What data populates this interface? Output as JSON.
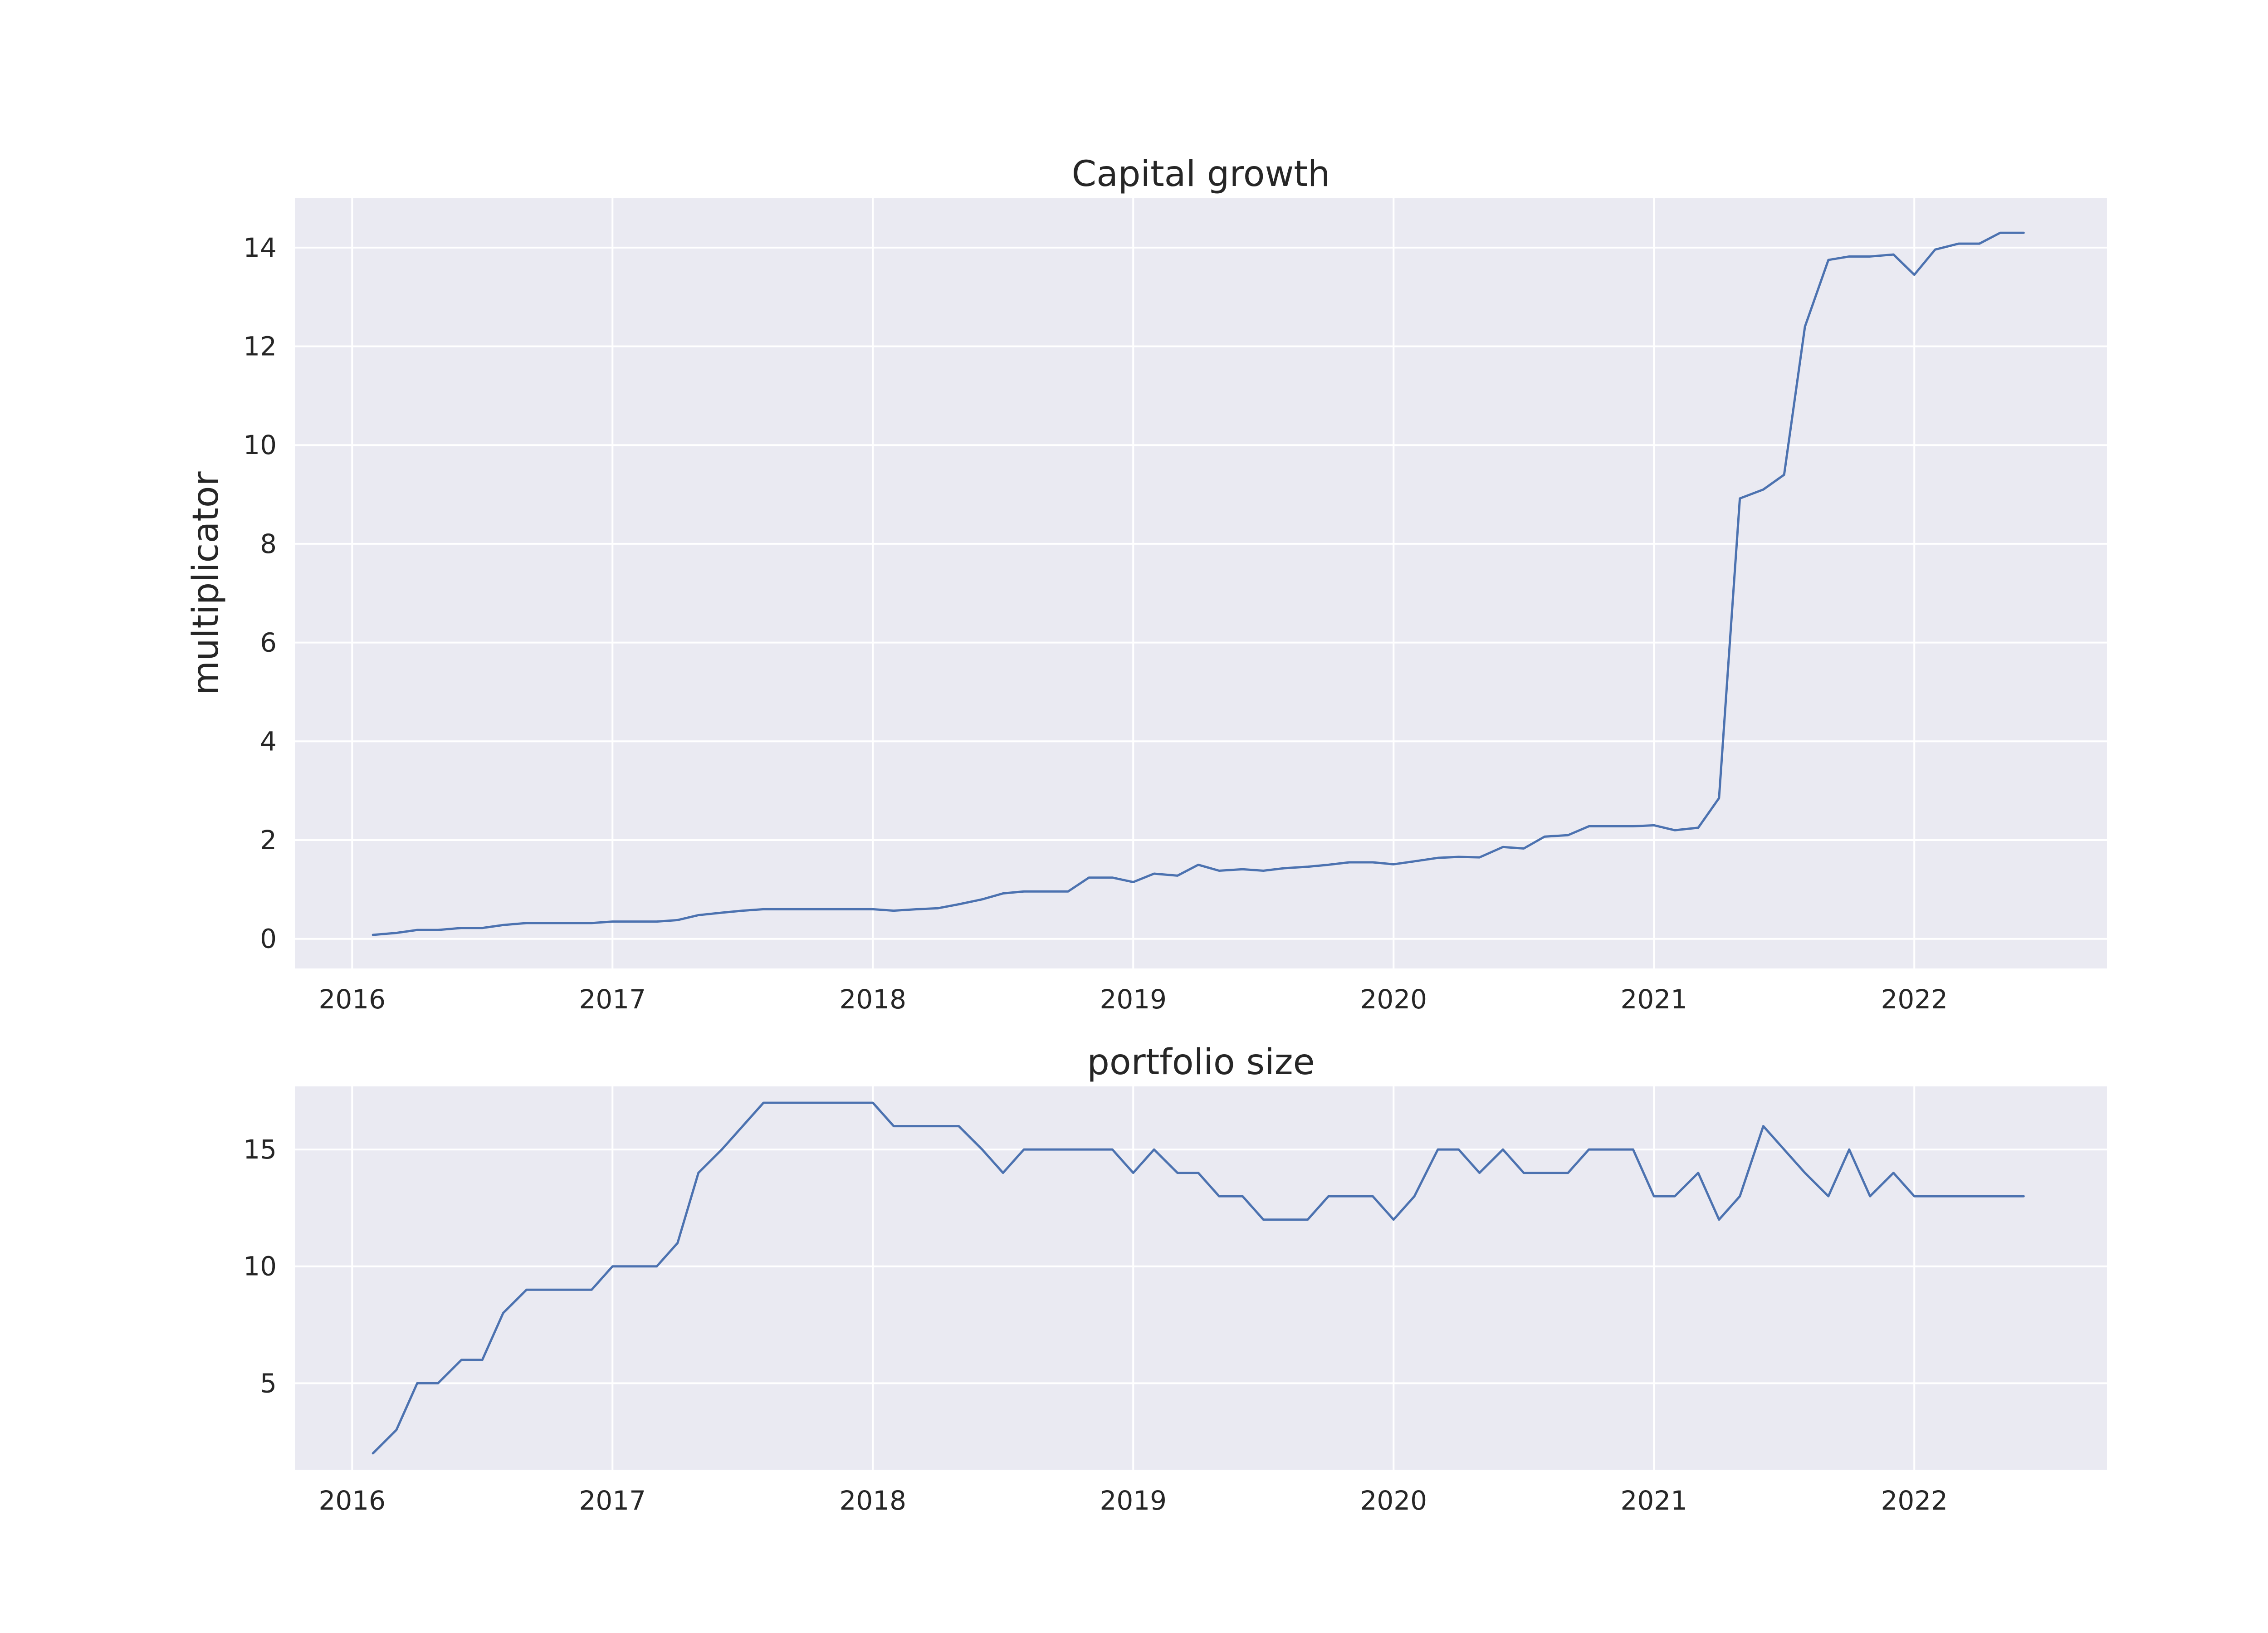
{
  "colors": {
    "line": "#4c72b0",
    "plot_bg": "#eaeaf2",
    "grid": "#ffffff",
    "text": "#262626"
  },
  "chart_data": [
    {
      "type": "line",
      "title": "Capital growth",
      "xlabel": "",
      "ylabel": "multiplicator",
      "grid": true,
      "xlim": [
        2015.78,
        2022.74
      ],
      "ylim": [
        -0.6,
        15.0
      ],
      "xticks": [
        2016,
        2017,
        2018,
        2019,
        2020,
        2021,
        2022
      ],
      "xtick_labels": [
        "2016",
        "2017",
        "2018",
        "2019",
        "2020",
        "2021",
        "2022"
      ],
      "yticks": [
        0,
        2,
        4,
        6,
        8,
        10,
        12,
        14
      ],
      "ytick_labels": [
        "0",
        "2",
        "4",
        "6",
        "8",
        "10",
        "12",
        "14"
      ],
      "series": [
        {
          "x": [
            2016.08,
            2016.17,
            2016.25,
            2016.33,
            2016.42,
            2016.5,
            2016.58,
            2016.67,
            2016.75,
            2016.83,
            2016.92,
            2017.0,
            2017.08,
            2017.17,
            2017.25,
            2017.33,
            2017.42,
            2017.5,
            2017.58,
            2017.67,
            2017.75,
            2017.83,
            2017.92,
            2018.0,
            2018.08,
            2018.17,
            2018.25,
            2018.33,
            2018.42,
            2018.5,
            2018.58,
            2018.67,
            2018.75,
            2018.83,
            2018.92,
            2019.0,
            2019.08,
            2019.17,
            2019.25,
            2019.33,
            2019.42,
            2019.5,
            2019.58,
            2019.67,
            2019.75,
            2019.83,
            2019.92,
            2020.0,
            2020.08,
            2020.17,
            2020.25,
            2020.33,
            2020.42,
            2020.5,
            2020.58,
            2020.67,
            2020.75,
            2020.83,
            2020.92,
            2021.0,
            2021.08,
            2021.17,
            2021.25,
            2021.33,
            2021.42,
            2021.5,
            2021.58,
            2021.67,
            2021.75,
            2021.83,
            2021.92,
            2022.0,
            2022.08,
            2022.17,
            2022.25,
            2022.33,
            2022.42
          ],
          "values": [
            0.08,
            0.12,
            0.18,
            0.18,
            0.22,
            0.22,
            0.28,
            0.32,
            0.32,
            0.32,
            0.32,
            0.35,
            0.35,
            0.35,
            0.38,
            0.48,
            0.53,
            0.57,
            0.6,
            0.6,
            0.6,
            0.6,
            0.6,
            0.6,
            0.57,
            0.6,
            0.62,
            0.7,
            0.8,
            0.92,
            0.96,
            0.96,
            0.96,
            1.24,
            1.24,
            1.15,
            1.32,
            1.28,
            1.5,
            1.38,
            1.41,
            1.38,
            1.43,
            1.46,
            1.5,
            1.55,
            1.55,
            1.51,
            1.57,
            1.64,
            1.66,
            1.65,
            1.86,
            1.83,
            2.07,
            2.1,
            2.28,
            2.28,
            2.28,
            2.3,
            2.2,
            2.25,
            2.85,
            8.92,
            9.1,
            9.4,
            12.4,
            13.75,
            13.82,
            13.82,
            13.86,
            13.45,
            13.96,
            14.08,
            14.08,
            14.3,
            14.3
          ]
        }
      ]
    },
    {
      "type": "line",
      "title": "portfolio size",
      "xlabel": "",
      "ylabel": "",
      "grid": true,
      "xlim": [
        2015.78,
        2022.74
      ],
      "ylim": [
        1.3,
        17.7
      ],
      "xticks": [
        2016,
        2017,
        2018,
        2019,
        2020,
        2021,
        2022
      ],
      "xtick_labels": [
        "2016",
        "2017",
        "2018",
        "2019",
        "2020",
        "2021",
        "2022"
      ],
      "yticks": [
        5,
        10,
        15
      ],
      "ytick_labels": [
        "5",
        "10",
        "15"
      ],
      "series": [
        {
          "x": [
            2016.08,
            2016.17,
            2016.25,
            2016.33,
            2016.42,
            2016.5,
            2016.58,
            2016.67,
            2016.75,
            2016.83,
            2016.92,
            2017.0,
            2017.08,
            2017.17,
            2017.25,
            2017.33,
            2017.42,
            2017.5,
            2017.58,
            2017.67,
            2017.75,
            2017.83,
            2017.92,
            2018.0,
            2018.08,
            2018.17,
            2018.25,
            2018.33,
            2018.42,
            2018.5,
            2018.58,
            2018.67,
            2018.75,
            2018.83,
            2018.92,
            2019.0,
            2019.08,
            2019.17,
            2019.25,
            2019.33,
            2019.42,
            2019.5,
            2019.58,
            2019.67,
            2019.75,
            2019.83,
            2019.92,
            2020.0,
            2020.08,
            2020.17,
            2020.25,
            2020.33,
            2020.42,
            2020.5,
            2020.58,
            2020.67,
            2020.75,
            2020.83,
            2020.92,
            2021.0,
            2021.08,
            2021.17,
            2021.25,
            2021.33,
            2021.42,
            2021.5,
            2021.58,
            2021.67,
            2021.75,
            2021.83,
            2021.92,
            2022.0,
            2022.08,
            2022.17,
            2022.25,
            2022.33,
            2022.42
          ],
          "values": [
            2,
            3,
            5,
            5,
            6,
            6,
            8,
            9,
            9,
            9,
            9,
            10,
            10,
            10,
            11,
            14,
            15,
            16,
            17,
            17,
            17,
            17,
            17,
            17,
            16,
            16,
            16,
            16,
            15,
            14,
            15,
            15,
            15,
            15,
            15,
            14,
            15,
            14,
            14,
            13,
            13,
            12,
            12,
            12,
            13,
            13,
            13,
            12,
            13,
            15,
            15,
            14,
            15,
            14,
            14,
            14,
            15,
            15,
            15,
            13,
            13,
            14,
            12,
            13,
            16,
            15,
            14,
            13,
            15,
            13,
            14,
            13,
            13,
            13,
            13,
            13,
            13
          ]
        }
      ]
    }
  ]
}
